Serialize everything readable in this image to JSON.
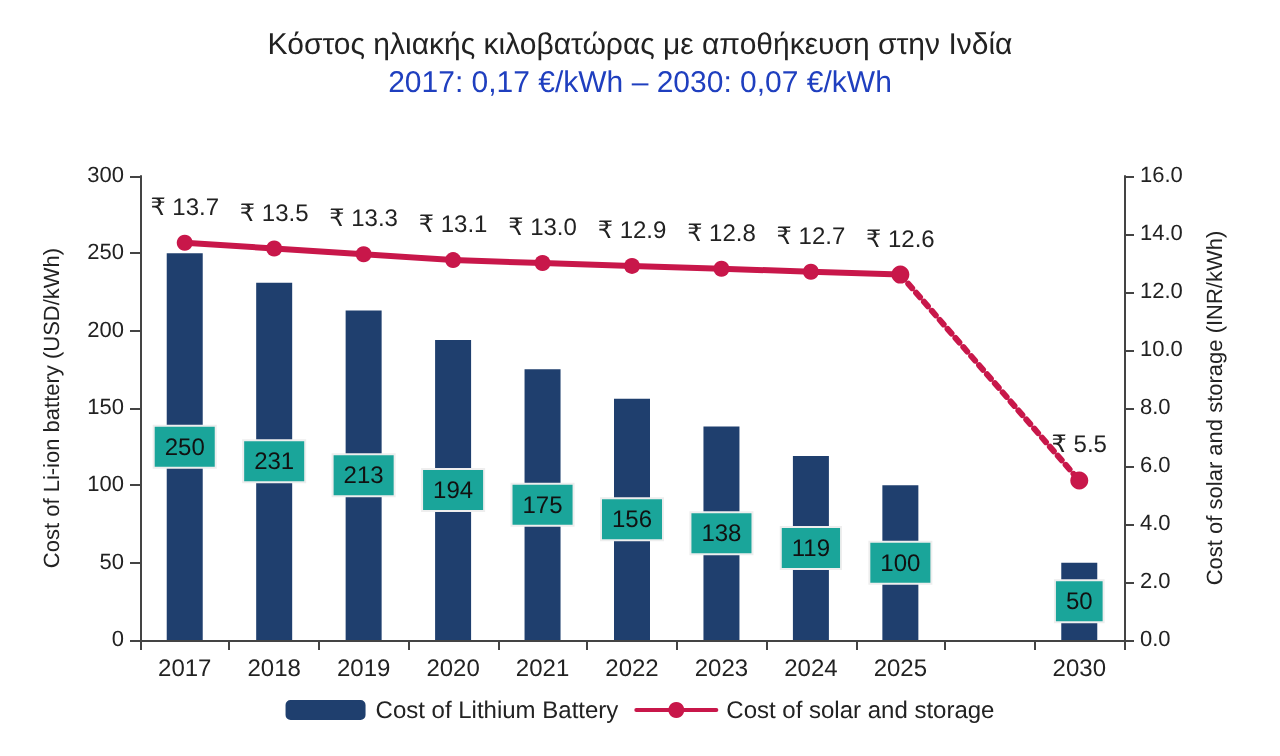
{
  "chart_data": {
    "type": "bar",
    "title": "Κόστος ηλιακής κιλοβατώρας με αποθήκευση στην Ινδία",
    "subtitle": "2017: 0,17 €/kWh – 2030: 0,07 €/kWh",
    "categories": [
      "2017",
      "2018",
      "2019",
      "2020",
      "2021",
      "2022",
      "2023",
      "2024",
      "2025",
      null,
      "2030"
    ],
    "ylabel": "Cost of Li-ion battery (USD/kWh)",
    "y2label": "Cost of solar and storage (INR/kWh)",
    "series": [
      {
        "name": "Cost of Lithium Battery",
        "color": "#1f3f6e",
        "values": [
          250,
          231,
          213,
          194,
          175,
          156,
          138,
          119,
          100,
          null,
          50
        ],
        "data_labels": true
      },
      {
        "name": "Cost of solar and storage",
        "type": "line",
        "axis": "y2",
        "color": "#c8174a",
        "marker": "circle",
        "line_style": "solid",
        "values": [
          13.7,
          13.5,
          13.3,
          13.1,
          13.0,
          12.9,
          12.8,
          12.7,
          12.6,
          null,
          null
        ],
        "value_labels": [
          "₹ 13.7",
          "₹ 13.5",
          "₹ 13.3",
          "₹ 13.1",
          "₹ 13.0",
          "₹ 12.9",
          "₹ 12.8",
          "₹ 12.7",
          "₹ 12.6",
          null,
          null
        ]
      },
      {
        "type": "line",
        "axis": "y2",
        "color": "#c8174a",
        "marker": "circle",
        "line_style": "dotted",
        "values": [
          null,
          null,
          null,
          null,
          null,
          null,
          null,
          null,
          12.6,
          null,
          5.5
        ],
        "value_labels": [
          null,
          null,
          null,
          null,
          null,
          null,
          null,
          null,
          null,
          null,
          "₹ 5.5"
        ]
      }
    ],
    "ylim": [
      0,
      300
    ],
    "yticks": [
      0,
      50,
      100,
      150,
      200,
      250,
      300
    ],
    "y2lim": [
      0,
      16
    ],
    "y2ticks": [
      {
        "value": 0,
        "label": "0.0"
      },
      {
        "value": 2,
        "label": "2.0"
      },
      {
        "value": 4,
        "label": "4.0"
      },
      {
        "value": 6,
        "label": "6.0"
      },
      {
        "value": 8,
        "label": "8.0"
      },
      {
        "value": 10,
        "label": "10.0"
      },
      {
        "value": 12,
        "label": "12.0"
      },
      {
        "value": 14,
        "label": "14.0"
      },
      {
        "value": 16,
        "label": "16.0"
      }
    ],
    "grid": false,
    "legend": "bottom"
  }
}
